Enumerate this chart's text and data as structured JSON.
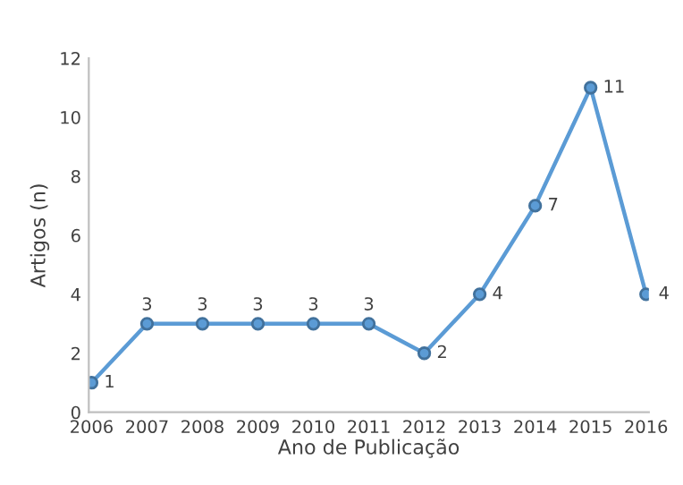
{
  "chart_data": {
    "type": "line",
    "xlabel": "Ano de Publicação",
    "ylabel": "Artigos (n)",
    "categories": [
      "2006",
      "2007",
      "2008",
      "2009",
      "2010",
      "2011",
      "2012",
      "2013",
      "2014",
      "2015",
      "2016"
    ],
    "series": [
      {
        "color": "#5b9bd5",
        "values": [
          1,
          3,
          3,
          3,
          3,
          3,
          2,
          4,
          7,
          11,
          4
        ]
      }
    ],
    "ylim": [
      0,
      12
    ],
    "yticks": [
      0,
      2,
      4,
      6,
      8,
      10,
      12
    ],
    "grid": false,
    "legend": false,
    "marker": "circle",
    "line_style": "solid",
    "data_labels": true
  }
}
